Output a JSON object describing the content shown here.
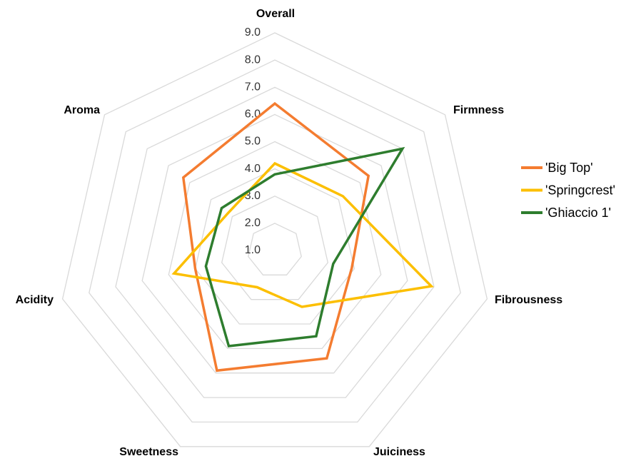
{
  "chart_data": {
    "type": "radar",
    "categories": [
      "Overall",
      "Firmness",
      "Fibrousness",
      "Juiciness",
      "Sweetness",
      "Acidity",
      "Aroma"
    ],
    "series": [
      {
        "name": "'Big Top'",
        "color": "#f47c30",
        "values": [
          6.4,
          5.4,
          3.9,
          5.4,
          5.9,
          4.0,
          5.3
        ]
      },
      {
        "name": "'Springcrest'",
        "color": "#fcbf00",
        "values": [
          4.2,
          4.2,
          6.9,
          3.3,
          2.5,
          4.8,
          3.2
        ]
      },
      {
        "name": "'Ghiaccio 1'",
        "color": "#2e7d2e",
        "values": [
          3.8,
          7.0,
          3.2,
          4.5,
          4.9,
          3.6,
          3.5
        ]
      }
    ],
    "ylim": [
      1,
      9
    ],
    "yticks": [
      {
        "value": 1,
        "label": "1.0"
      },
      {
        "value": 2,
        "label": "2.0"
      },
      {
        "value": 3,
        "label": "3.0"
      },
      {
        "value": 4,
        "label": "4.0"
      },
      {
        "value": 5,
        "label": "5.0"
      },
      {
        "value": 6,
        "label": "6.0"
      },
      {
        "value": 7,
        "label": "7.0"
      },
      {
        "value": 8,
        "label": "8.0"
      },
      {
        "value": 9,
        "label": "9.0"
      }
    ],
    "grid": true,
    "legend": "right"
  }
}
